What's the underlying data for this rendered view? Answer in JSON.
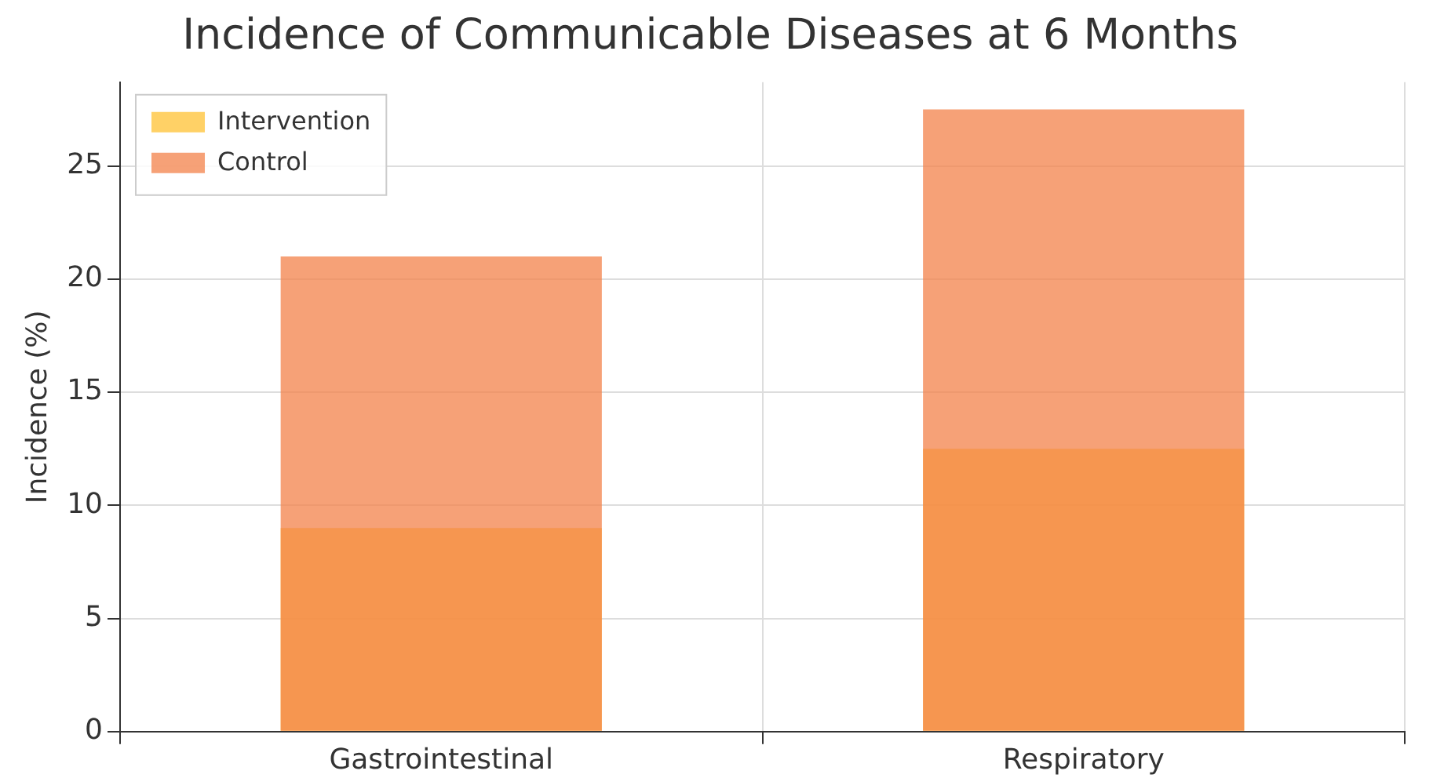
{
  "chart_data": {
    "type": "bar",
    "title": "Incidence of Communicable Diseases at 6 Months",
    "ylabel": "Incidence (%)",
    "categories": [
      "Gastrointestinal",
      "Respiratory"
    ],
    "series": [
      {
        "name": "Intervention",
        "color": "#ffc233",
        "values": [
          9,
          12.5
        ]
      },
      {
        "name": "Control",
        "color": "#f3824a",
        "values": [
          21,
          27.5
        ]
      }
    ],
    "ylim": [
      0,
      28.7
    ],
    "yticks": [
      0,
      5,
      10,
      15,
      20,
      25
    ],
    "grid": true,
    "legend": "top left"
  }
}
